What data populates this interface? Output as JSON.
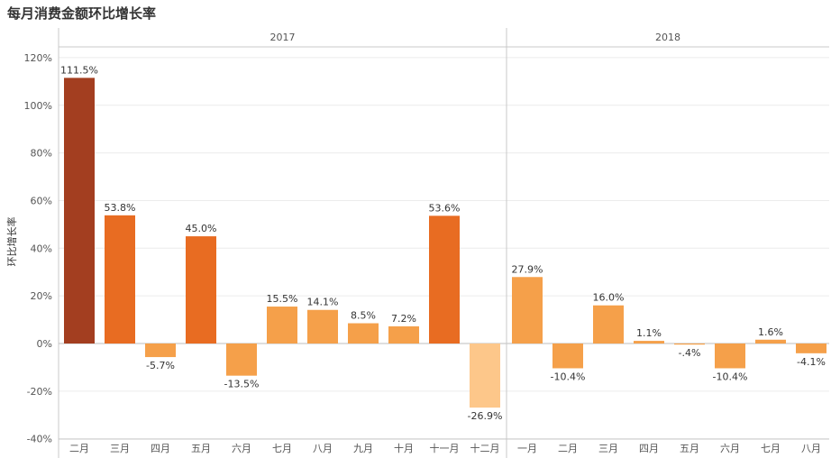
{
  "title": "每月消费金额环比增长率",
  "chart_data": {
    "type": "bar",
    "ylabel": "环比增长率",
    "ylim": [
      -45,
      125
    ],
    "yticks": [
      -40,
      -20,
      0,
      20,
      40,
      60,
      80,
      100,
      120
    ],
    "ytick_labels": [
      "-40%",
      "-20%",
      "0%",
      "20%",
      "40%",
      "60%",
      "80%",
      "100%",
      "120%"
    ],
    "panels": [
      {
        "year": "2017",
        "categories": [
          "二月",
          "三月",
          "四月",
          "五月",
          "六月",
          "七月",
          "八月",
          "九月",
          "十月",
          "十一月",
          "十二月"
        ],
        "values": [
          111.5,
          53.8,
          -5.7,
          45.0,
          -13.5,
          15.5,
          14.1,
          8.5,
          7.2,
          53.6,
          -26.9
        ],
        "labels": [
          "111.5%",
          "53.8%",
          "-5.7%",
          "45.0%",
          "-13.5%",
          "15.5%",
          "14.1%",
          "8.5%",
          "7.2%",
          "53.6%",
          "-26.9%"
        ]
      },
      {
        "year": "2018",
        "categories": [
          "一月",
          "二月",
          "三月",
          "四月",
          "五月",
          "六月",
          "七月",
          "八月"
        ],
        "values": [
          27.9,
          -10.4,
          16.0,
          1.1,
          -0.4,
          -10.4,
          1.6,
          -4.1
        ],
        "labels": [
          "27.9%",
          "-10.4%",
          "16.0%",
          "1.1%",
          "-.4%",
          "-10.4%",
          "1.6%",
          "-4.1%"
        ]
      }
    ],
    "color_scale": {
      "min_color": "#fdc78a",
      "low_color": "#f5a04a",
      "mid_color": "#e86c22",
      "max_color": "#a33e20"
    }
  }
}
